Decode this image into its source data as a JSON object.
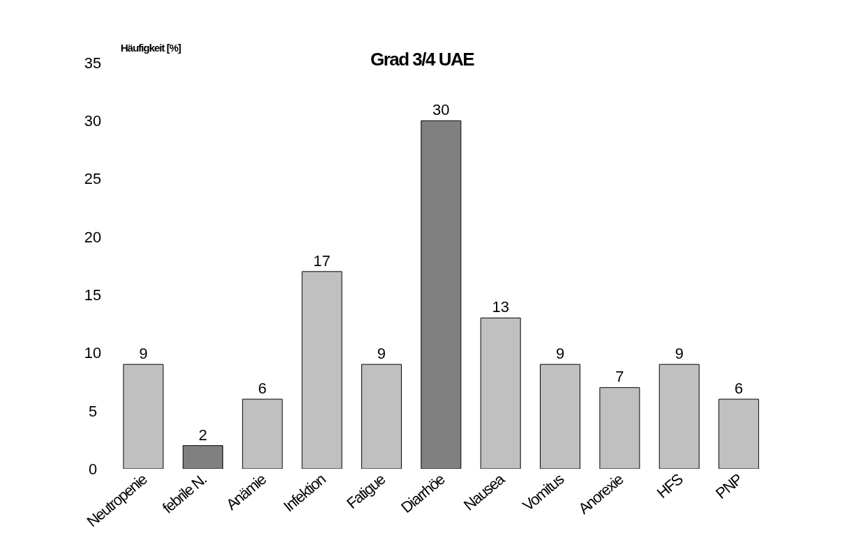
{
  "chart_data": {
    "type": "bar",
    "title": "Grad 3/4 UAE",
    "ylabel": "Häufigkeit [%]",
    "categories": [
      "Neutropenie",
      "febrile N.",
      "Anämie",
      "Infektion",
      "Fatigue",
      "Diarrhöe",
      "Nausea",
      "Vomitus",
      "Anorexie",
      "HFS",
      "PNP"
    ],
    "values": [
      9,
      2,
      6,
      17,
      9,
      30,
      13,
      9,
      7,
      9,
      6
    ],
    "colors": [
      "#c0c0c0",
      "#808080",
      "#c0c0c0",
      "#c0c0c0",
      "#c0c0c0",
      "#808080",
      "#c0c0c0",
      "#c0c0c0",
      "#c0c0c0",
      "#c0c0c0",
      "#c0c0c0"
    ],
    "ylim": [
      0,
      35
    ],
    "yticks": [
      0,
      5,
      10,
      15,
      20,
      25,
      30,
      35
    ],
    "grid": false,
    "data_labels": true
  }
}
